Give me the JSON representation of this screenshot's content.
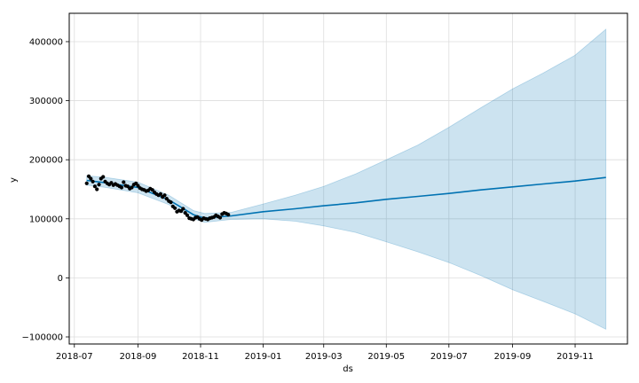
{
  "chart_data": {
    "type": "line",
    "title": "",
    "xlabel": "ds",
    "ylabel": "y",
    "xlim": [
      "2018-06-26",
      "2019-12-22"
    ],
    "ylim": [
      -112000,
      448000
    ],
    "x_ticks": [
      {
        "date": "2018-07-01",
        "label": "2018-07"
      },
      {
        "date": "2018-09-01",
        "label": "2018-09"
      },
      {
        "date": "2018-11-01",
        "label": "2018-11"
      },
      {
        "date": "2019-01-01",
        "label": "2019-01"
      },
      {
        "date": "2019-03-01",
        "label": "2019-03"
      },
      {
        "date": "2019-05-01",
        "label": "2019-05"
      },
      {
        "date": "2019-07-01",
        "label": "2019-07"
      },
      {
        "date": "2019-09-01",
        "label": "2019-09"
      },
      {
        "date": "2019-11-01",
        "label": "2019-11"
      }
    ],
    "y_ticks": [
      {
        "value": -100000,
        "label": "−100000"
      },
      {
        "value": 0,
        "label": "0"
      },
      {
        "value": 100000,
        "label": "100000"
      },
      {
        "value": 200000,
        "label": "200000"
      },
      {
        "value": 300000,
        "label": "300000"
      },
      {
        "value": 400000,
        "label": "400000"
      }
    ],
    "grid": true,
    "series": [
      {
        "name": "uncertainty interval",
        "kind": "band",
        "color": "#0072B2",
        "opacity": 0.2,
        "x": [
          "2018-07-13",
          "2018-08-01",
          "2018-09-01",
          "2018-10-01",
          "2018-10-25",
          "2018-11-05",
          "2018-12-01",
          "2019-01-01",
          "2019-02-01",
          "2019-03-01",
          "2019-04-01",
          "2019-05-01",
          "2019-06-01",
          "2019-07-01",
          "2019-08-01",
          "2019-09-01",
          "2019-10-01",
          "2019-11-01",
          "2019-12-01"
        ],
        "lower": [
          157000,
          153000,
          144000,
          124000,
          100000,
          94000,
          99000,
          100000,
          96000,
          88000,
          77000,
          61000,
          44000,
          26000,
          4000,
          -20000,
          -40000,
          -61000,
          -87000
        ],
        "upper": [
          173000,
          170000,
          162000,
          140000,
          114000,
          109000,
          111000,
          125000,
          140000,
          155000,
          176000,
          200000,
          225000,
          255000,
          288000,
          320000,
          347000,
          377000,
          421000
        ]
      },
      {
        "name": "yhat",
        "kind": "line",
        "color": "#0072B2",
        "x": [
          "2018-07-13",
          "2018-08-01",
          "2018-09-01",
          "2018-10-01",
          "2018-10-25",
          "2018-11-05",
          "2018-12-01",
          "2019-01-01",
          "2019-02-01",
          "2019-03-01",
          "2019-04-01",
          "2019-05-01",
          "2019-06-01",
          "2019-07-01",
          "2019-08-01",
          "2019-09-01",
          "2019-10-01",
          "2019-11-01",
          "2019-12-01"
        ],
        "y": [
          165000,
          161000,
          153000,
          132000,
          107000,
          101000,
          105000,
          112000,
          117000,
          122000,
          127000,
          133000,
          138000,
          143000,
          149000,
          154000,
          159000,
          164000,
          170000
        ]
      },
      {
        "name": "observed",
        "kind": "scatter",
        "color": "#000000",
        "x": [
          "2018-07-13",
          "2018-07-15",
          "2018-07-17",
          "2018-07-19",
          "2018-07-21",
          "2018-07-23",
          "2018-07-25",
          "2018-07-27",
          "2018-07-29",
          "2018-07-31",
          "2018-08-02",
          "2018-08-04",
          "2018-08-06",
          "2018-08-08",
          "2018-08-10",
          "2018-08-12",
          "2018-08-14",
          "2018-08-16",
          "2018-08-18",
          "2018-08-20",
          "2018-08-22",
          "2018-08-24",
          "2018-08-26",
          "2018-08-28",
          "2018-08-30",
          "2018-09-01",
          "2018-09-03",
          "2018-09-05",
          "2018-09-07",
          "2018-09-09",
          "2018-09-11",
          "2018-09-13",
          "2018-09-15",
          "2018-09-17",
          "2018-09-19",
          "2018-09-21",
          "2018-09-23",
          "2018-09-25",
          "2018-09-27",
          "2018-09-29",
          "2018-10-01",
          "2018-10-03",
          "2018-10-05",
          "2018-10-07",
          "2018-10-09",
          "2018-10-11",
          "2018-10-13",
          "2018-10-15",
          "2018-10-17",
          "2018-10-19",
          "2018-10-21",
          "2018-10-23",
          "2018-10-25",
          "2018-10-27",
          "2018-10-29",
          "2018-10-31",
          "2018-11-02",
          "2018-11-04",
          "2018-11-06",
          "2018-11-08",
          "2018-11-10",
          "2018-11-12",
          "2018-11-14",
          "2018-11-16",
          "2018-11-18",
          "2018-11-20",
          "2018-11-22",
          "2018-11-24",
          "2018-11-26",
          "2018-11-28"
        ],
        "y": [
          160000,
          172000,
          168000,
          163000,
          155000,
          150000,
          158000,
          168000,
          171000,
          163000,
          160000,
          158000,
          161000,
          157000,
          159000,
          157000,
          155000,
          153000,
          162000,
          156000,
          155000,
          151000,
          153000,
          158000,
          160000,
          156000,
          152000,
          150000,
          149000,
          147000,
          148000,
          151000,
          149000,
          145000,
          142000,
          140000,
          142000,
          137000,
          140000,
          134000,
          130000,
          128000,
          121000,
          118000,
          112000,
          114000,
          113000,
          117000,
          110000,
          106000,
          101000,
          100000,
          99000,
          102000,
          103000,
          100000,
          98000,
          101000,
          100000,
          99000,
          101000,
          102000,
          103000,
          106000,
          104000,
          102000,
          108000,
          110000,
          109000,
          107000
        ]
      }
    ]
  }
}
